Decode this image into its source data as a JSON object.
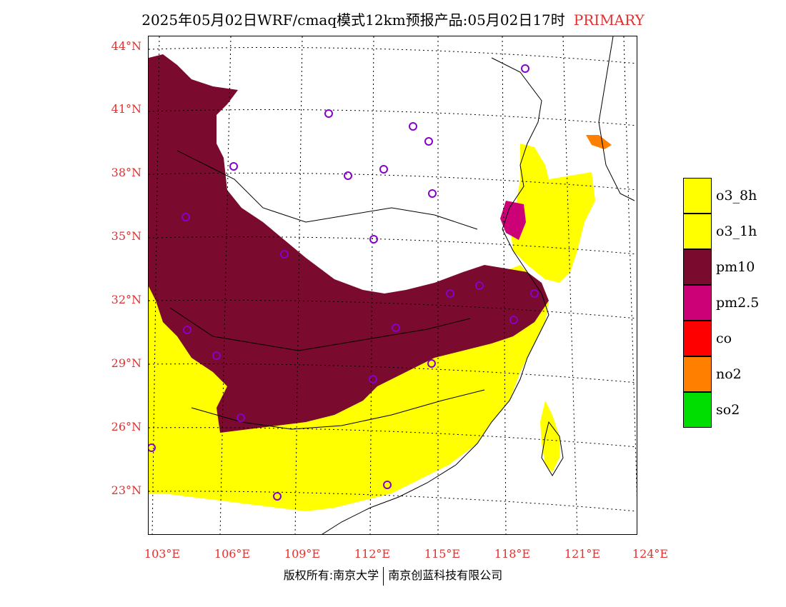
{
  "title": {
    "main": "2025年05月02日WRF/cmaq模式12km预报产品:05月02日17时",
    "tag": "PRIMARY"
  },
  "map": {
    "region": "East China",
    "lat_range": [
      20.8,
      44.5
    ],
    "lon_range": [
      102.7,
      124.0
    ],
    "lat_ticks": [
      "44°N",
      "41°N",
      "38°N",
      "35°N",
      "32°N",
      "29°N",
      "26°N",
      "23°N"
    ],
    "lon_ticks": [
      "103°E",
      "106°E",
      "109°E",
      "112°E",
      "115°E",
      "118°E",
      "121°E",
      "124°E"
    ],
    "gridlines": "dotted",
    "colors": {
      "o3_8h": "#ffff00",
      "o3_1h": "#ffff00",
      "pm10": "#7a0a2e",
      "pm2.5": "#cc0077",
      "co": "#ff0000",
      "no2": "#ff7f00",
      "so2": "#00dd00",
      "station_marker": "#8800cc",
      "tick_label": "#e03030"
    }
  },
  "legend": {
    "items": [
      {
        "label": "o3_8h",
        "color": "#ffff00"
      },
      {
        "label": "o3_1h",
        "color": "#ffff00"
      },
      {
        "label": "pm10",
        "color": "#7a0a2e"
      },
      {
        "label": "pm2.5",
        "color": "#cc0077"
      },
      {
        "label": "co",
        "color": "#ff0000"
      },
      {
        "label": "no2",
        "color": "#ff7f00"
      },
      {
        "label": "so2",
        "color": "#00dd00"
      }
    ]
  },
  "footer": {
    "copyright_left": "版权所有:南京大学",
    "copyright_right": "南京创蓝科技有限公司"
  }
}
